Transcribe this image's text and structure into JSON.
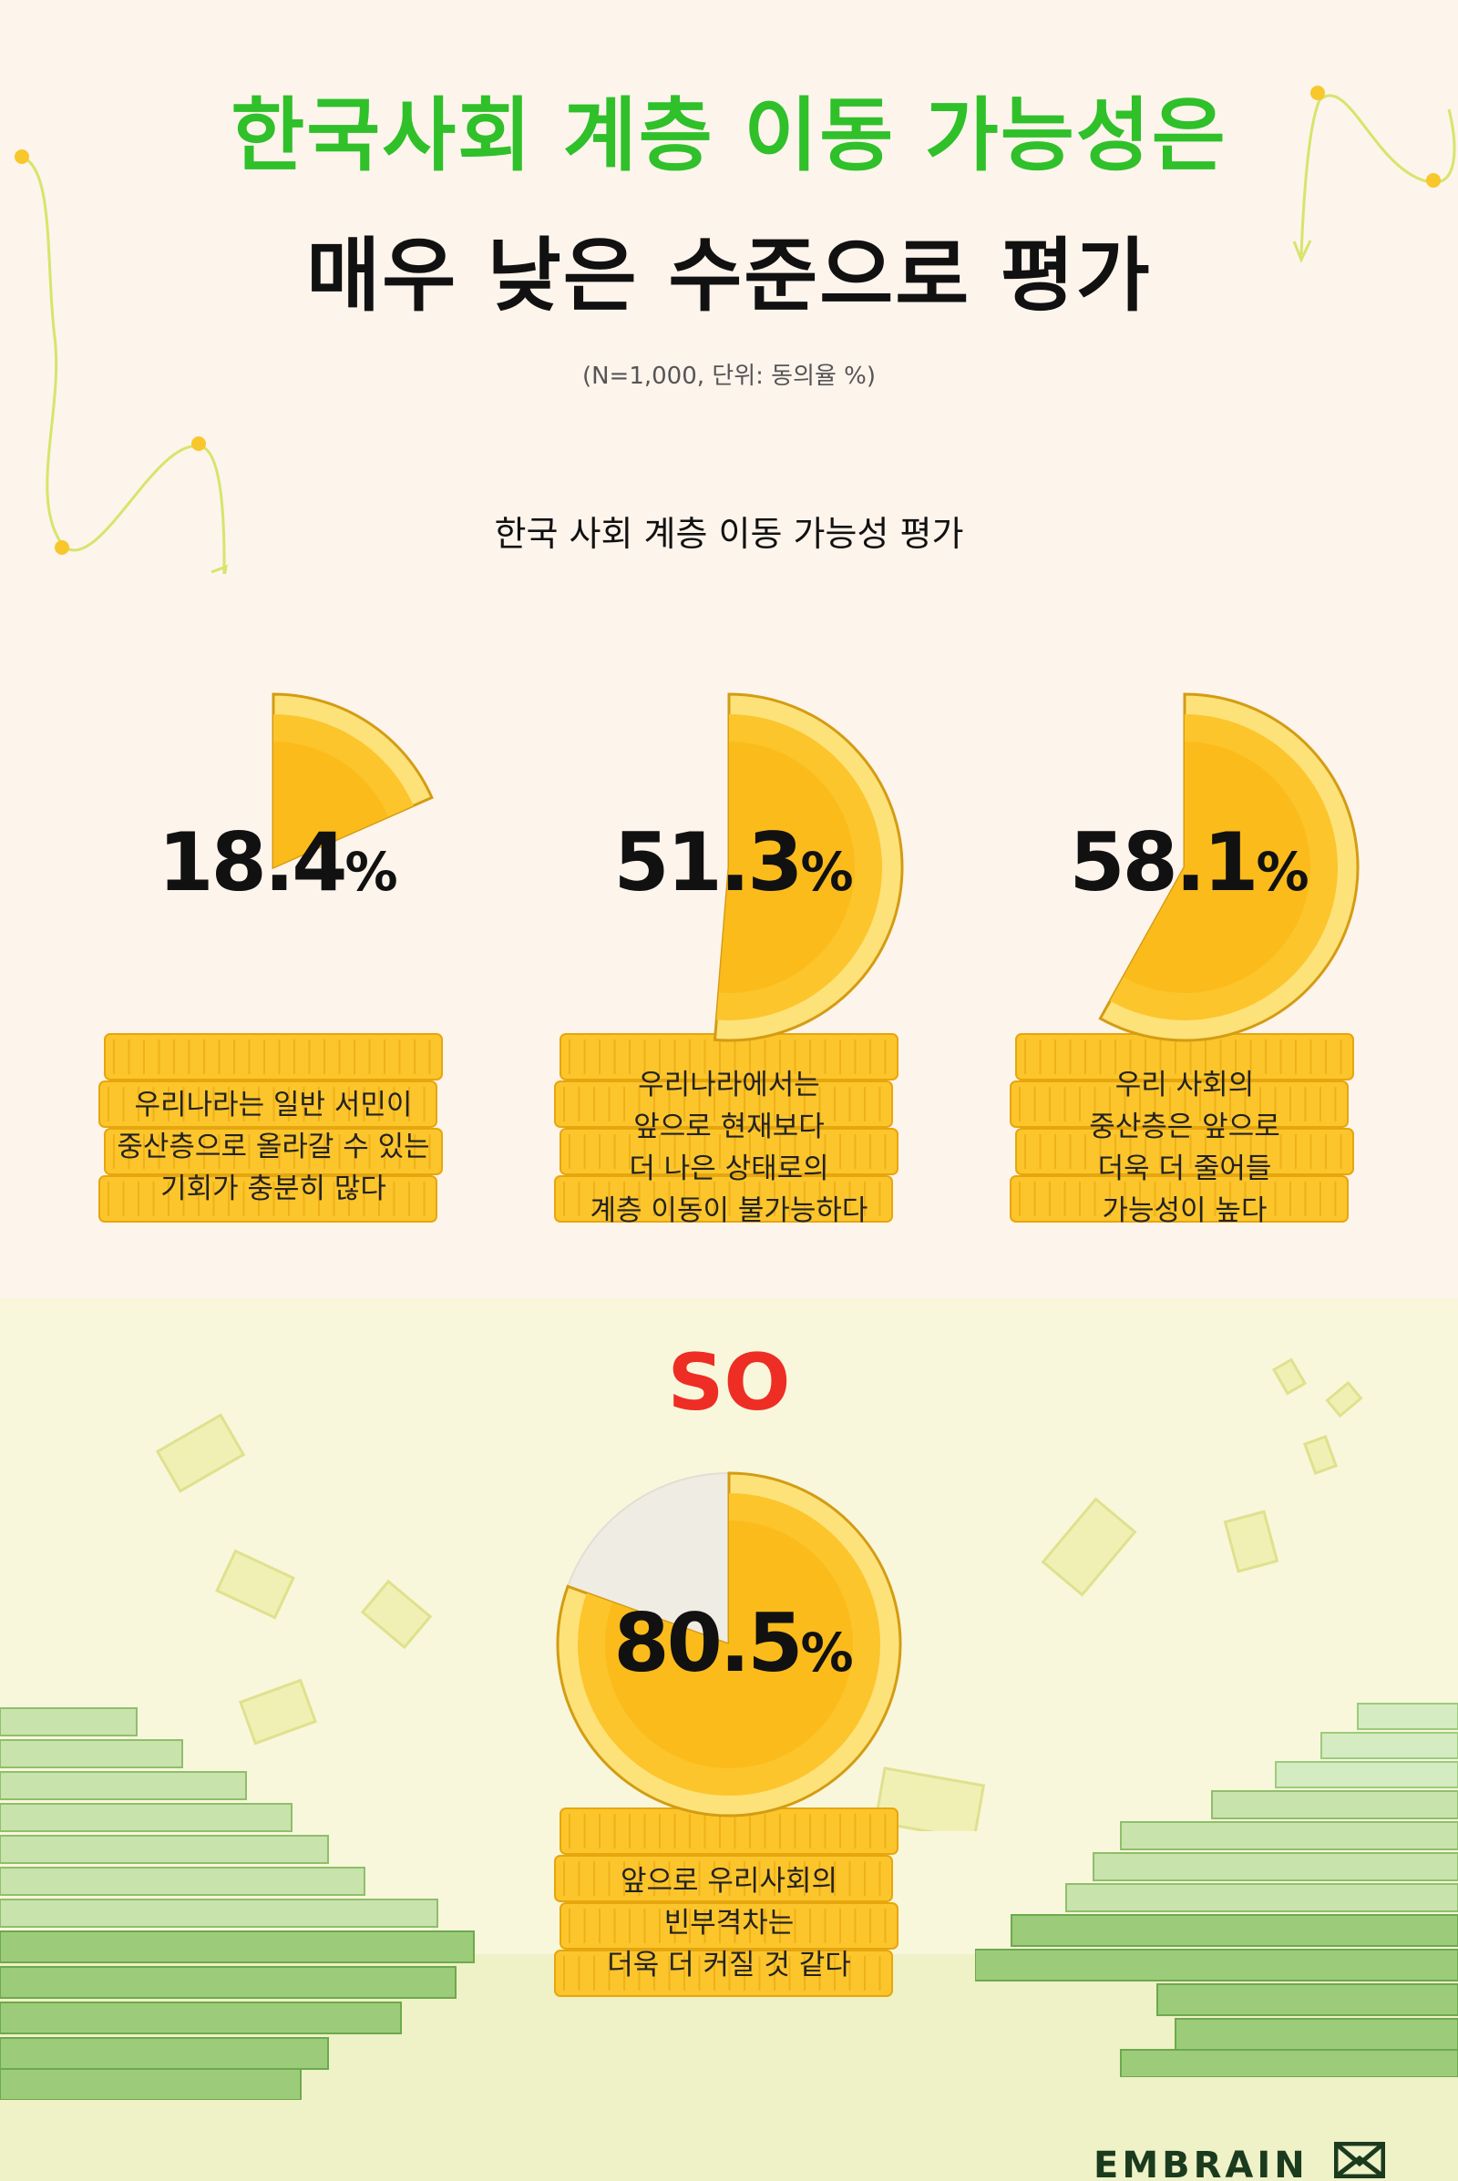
{
  "title_line1": "한국사회 계층 이동 가능성은",
  "title_line2": "매우 낮은 수준으로 평가",
  "note": "(N=1,000, 단위: 동의율 %)",
  "subtitle": "한국 사회 계층 이동 가능성 평가",
  "bridge_text": "SO",
  "brand": "EMBRAIN",
  "colors": {
    "title_green": "#2fc02a",
    "so_red": "#ee2d25",
    "coin_gold": "#fcc52c",
    "coin_light": "#fde27a",
    "bill_green": "#9ccc7a"
  },
  "chart_data": [
    {
      "type": "pie",
      "title": "한국 사회 계층 이동 가능성 평가",
      "unit": "%",
      "slices": [
        {
          "value": 18.4,
          "value_text": "18.4",
          "label": "우리나라는 일반 서민이\n중산층으로 올라갈 수 있는\n기회가 충분히 많다"
        },
        {
          "value": 51.3,
          "value_text": "51.3",
          "label": "우리나라에서는\n앞으로 현재보다\n더 나은 상태로의\n계층 이동이 불가능하다"
        },
        {
          "value": 58.1,
          "value_text": "58.1",
          "label": "우리 사회의\n중산층은 앞으로\n더욱 더 줄어들\n가능성이 높다"
        }
      ]
    },
    {
      "type": "pie",
      "unit": "%",
      "slices": [
        {
          "value": 80.5,
          "value_text": "80.5",
          "label": "앞으로 우리사회의\n빈부격차는\n더욱 더 커질 것 같다"
        }
      ]
    }
  ]
}
